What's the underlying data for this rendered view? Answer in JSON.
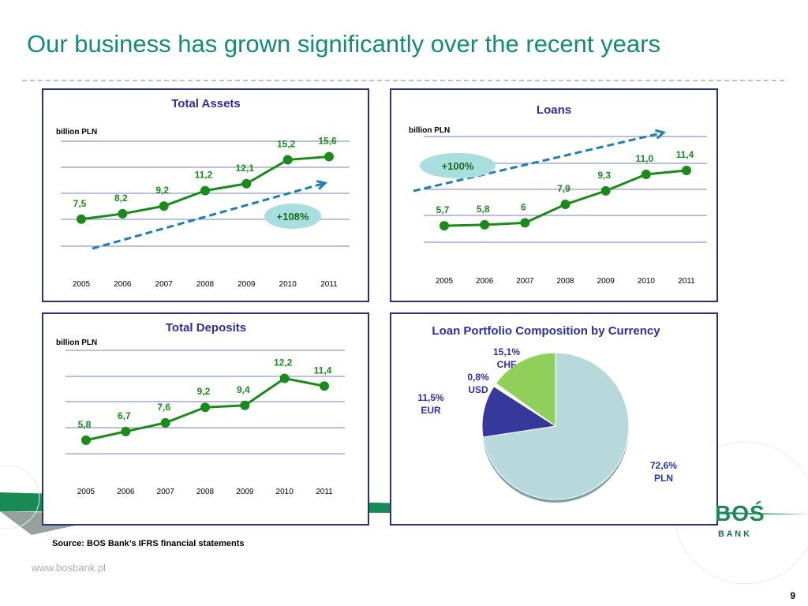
{
  "slide": {
    "title": "Our business has grown significantly over the recent years",
    "source": "Source: BOS Bank’s IFRS financial statements",
    "url": "www.bosbank.pl",
    "page_number": "9",
    "logo_text_top": "BOŚ",
    "logo_text_bottom": "B A N K"
  },
  "colors": {
    "title": "#138a7a",
    "line": "#1a8a1a",
    "label": "#1a8a1a",
    "panel_border": "#2c2f7a",
    "grid": "#7a7fb8",
    "arrow": "#1f7fb0",
    "bubble": "#a8dede",
    "pie_pln": "#b7d9dc",
    "pie_eur": "#36399a",
    "pie_usd": "#ffffff",
    "pie_chf": "#8fcf5a"
  },
  "chart_data": [
    {
      "type": "line",
      "title": "Total Assets",
      "unit_label": "billion PLN",
      "categories": [
        "2005",
        "2006",
        "2007",
        "2008",
        "2009",
        "2010",
        "2011"
      ],
      "values": [
        7.5,
        8.2,
        9.2,
        11.2,
        12.1,
        15.2,
        15.6
      ],
      "labels": [
        "7,5",
        "8,2",
        "9,2",
        "11,2",
        "12,1",
        "15,2",
        "15,6"
      ],
      "annotation": "+108%",
      "annotation_position": "bottom-right",
      "grid": true,
      "legend": "none"
    },
    {
      "type": "line",
      "title": "Loans",
      "unit_label": "billion PLN",
      "categories": [
        "2005",
        "2006",
        "2007",
        "2008",
        "2009",
        "2010",
        "2011"
      ],
      "values": [
        5.7,
        5.8,
        6,
        7.9,
        9.3,
        11.0,
        11.4
      ],
      "labels": [
        "5,7",
        "5,8",
        "6",
        "7,9",
        "9,3",
        "11,0",
        "11,4"
      ],
      "annotation": "+100%",
      "annotation_position": "top-left",
      "grid": true,
      "legend": "none"
    },
    {
      "type": "line",
      "title": "Total Deposits",
      "unit_label": "billion PLN",
      "categories": [
        "2005",
        "2006",
        "2007",
        "2008",
        "2009",
        "2010",
        "2011"
      ],
      "values": [
        5.8,
        6.7,
        7.6,
        9.2,
        9.4,
        12.2,
        11.4
      ],
      "labels": [
        "5,8",
        "6,7",
        "7,6",
        "9,2",
        "9,4",
        "12,2",
        "11,4"
      ],
      "grid": true,
      "legend": "none"
    },
    {
      "type": "pie",
      "title": "Loan Portfolio Composition by Currency",
      "slices": [
        {
          "name": "PLN",
          "value": 72.6,
          "label": "72,6%",
          "color": "#b7d9dc"
        },
        {
          "name": "EUR",
          "value": 11.5,
          "label": "11,5%",
          "color": "#36399a"
        },
        {
          "name": "USD",
          "value": 0.8,
          "label": "0,8%",
          "color": "#ffffff"
        },
        {
          "name": "CHF",
          "value": 15.1,
          "label": "15,1%",
          "color": "#8fcf5a"
        }
      ]
    }
  ]
}
